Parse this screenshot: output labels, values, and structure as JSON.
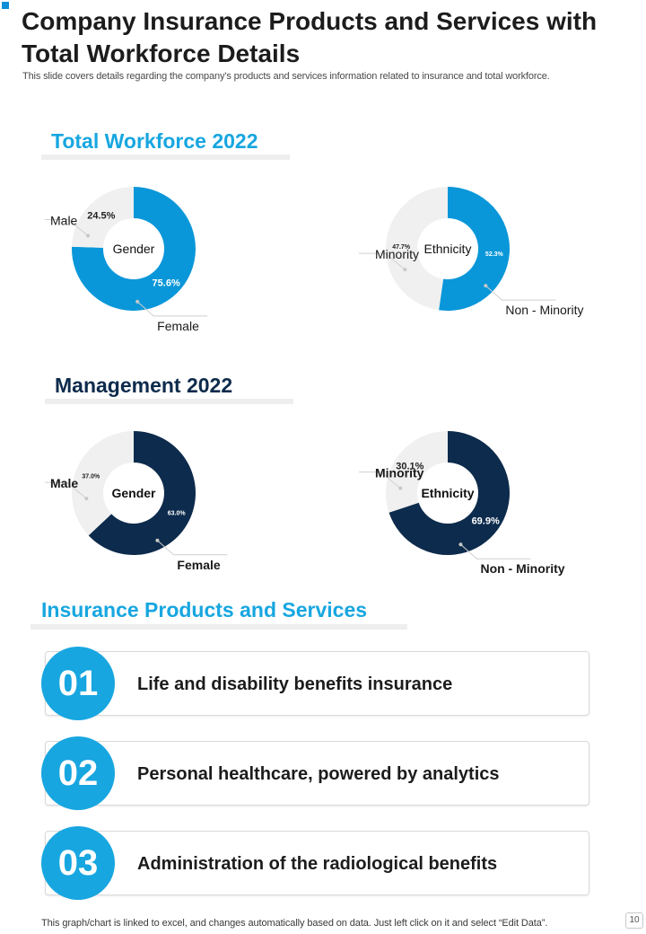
{
  "header": {
    "title": "Company Insurance Products and Services with Total Workforce Details",
    "subtitle": "This slide covers details regarding the company’s products and services information related to insurance and total workforce."
  },
  "sections": {
    "workforce_title": "Total Workforce 2022",
    "management_title": "Management 2022",
    "products_title": "Insurance Products and Services"
  },
  "colors": {
    "blue": "#0a97d9",
    "navy": "#0d2b4c",
    "light": "#f0f0f0",
    "accent": "#17a6e0"
  },
  "chart_data": [
    {
      "type": "pie",
      "group": "Total Workforce 2022",
      "center_label": "Gender",
      "color": "blue",
      "slices": [
        {
          "label": "Female",
          "value": 75.6,
          "display": "75.6%",
          "highlight": true
        },
        {
          "label": "Male",
          "value": 24.5,
          "display": "24.5%",
          "highlight": false
        }
      ]
    },
    {
      "type": "pie",
      "group": "Total Workforce 2022",
      "center_label": "Ethnicity",
      "color": "blue",
      "slices": [
        {
          "label": "Non - Minority",
          "value": 52.3,
          "display": "52.3%",
          "highlight": true
        },
        {
          "label": "Minority",
          "value": 47.7,
          "display": "47.7%",
          "highlight": false
        }
      ]
    },
    {
      "type": "pie",
      "group": "Management 2022",
      "center_label": "Gender",
      "color": "navy",
      "slices": [
        {
          "label": "Female",
          "value": 63.0,
          "display": "63.0%",
          "highlight": true
        },
        {
          "label": "Male",
          "value": 37.0,
          "display": "37.0%",
          "highlight": false
        }
      ]
    },
    {
      "type": "pie",
      "group": "Management 2022",
      "center_label": "Ethnicity",
      "color": "navy",
      "slices": [
        {
          "label": "Non - Minority",
          "value": 69.9,
          "display": "69.9%",
          "highlight": true
        },
        {
          "label": "Minority",
          "value": 30.1,
          "display": "30.1%",
          "highlight": false
        }
      ]
    }
  ],
  "products": [
    {
      "number": "01",
      "text": "Life and disability  benefits insurance"
    },
    {
      "number": "02",
      "text": "Personal healthcare, powered by analytics"
    },
    {
      "number": "03",
      "text": "Administration  of the radiological  benefits"
    }
  ],
  "footer": {
    "note": "This graph/chart is linked to excel,  and changes automatically based on data. Just left click on it and select “Edit Data”.",
    "page": "10"
  }
}
